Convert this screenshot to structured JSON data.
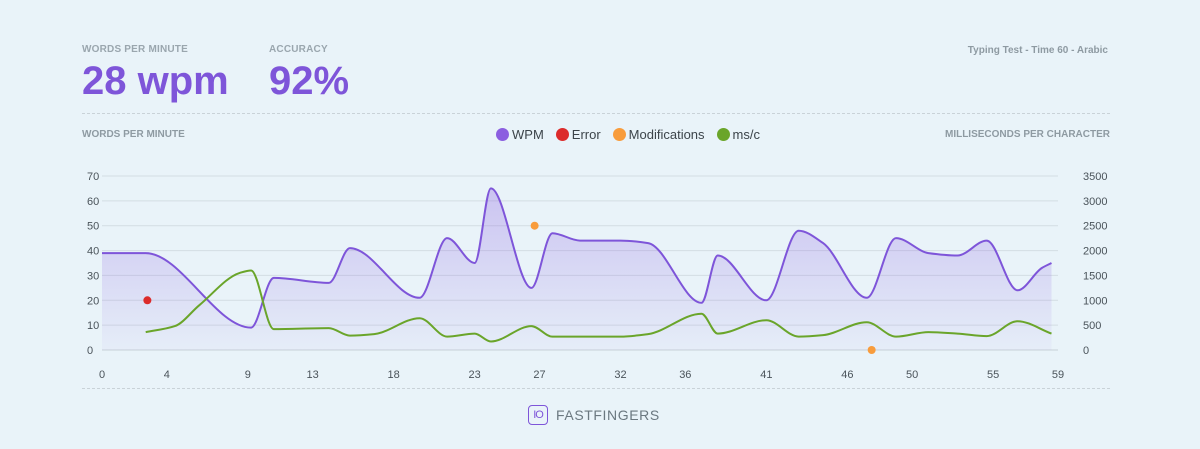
{
  "header": {
    "wpm_label": "WORDS PER MINUTE",
    "wpm_value": "28 wpm",
    "accuracy_label": "ACCURACY",
    "accuracy_value": "92%",
    "test_info": "Typing Test - Time 60 - Arabic"
  },
  "brand": {
    "icon_text": "IO",
    "name": "FASTFINGERS"
  },
  "colors": {
    "accent": "#7e55d9",
    "wpm": "#7e55d9",
    "error": "#dc2b2b",
    "modifications": "#f89c3c",
    "msc": "#6aa52a"
  },
  "chart_data": {
    "type": "line",
    "left_axis_title": "WORDS PER MINUTE",
    "right_axis_title": "MILLISECONDS PER CHARACTER",
    "x_ticks": [
      "0",
      "4",
      "9",
      "13",
      "18",
      "23",
      "27",
      "32",
      "36",
      "41",
      "46",
      "50",
      "55",
      "59"
    ],
    "x_range": [
      0,
      59
    ],
    "y_left_ticks": [
      "0",
      "10",
      "20",
      "30",
      "40",
      "50",
      "60",
      "70"
    ],
    "y_left_range": [
      0,
      70
    ],
    "y_right_ticks": [
      "0",
      "500",
      "1000",
      "1500",
      "2000",
      "2500",
      "3000",
      "3500"
    ],
    "y_right_range": [
      0,
      3500
    ],
    "grid": true,
    "legend": [
      "WPM",
      "Error",
      "Modifications",
      "ms/c"
    ],
    "legend_position": "top-center",
    "series": [
      {
        "name": "WPM",
        "axis": "left",
        "area": true,
        "x": [
          0,
          2.7,
          9.2,
          10.6,
          14,
          15.3,
          19.6,
          21.3,
          23,
          24,
          26.5,
          27.8,
          29.5,
          32,
          33.7,
          37,
          38,
          41,
          43,
          44.5,
          47.2,
          49,
          51,
          52.8,
          54.6,
          56.5,
          58,
          58.6
        ],
        "y": [
          39,
          39,
          9,
          29,
          27,
          41,
          21,
          45,
          35,
          65,
          25,
          47,
          44,
          44,
          43,
          19,
          38,
          20,
          48,
          43,
          21,
          45,
          39,
          38,
          44,
          24,
          33,
          35
        ]
      },
      {
        "name": "ms/c",
        "axis": "right",
        "x": [
          2.7,
          4.5,
          6,
          8.5,
          9.2,
          10.6,
          14,
          15.3,
          16.8,
          19.6,
          21.3,
          23,
          24,
          26.5,
          27.8,
          29.5,
          32,
          33.7,
          37,
          38,
          41,
          43,
          44.5,
          47.2,
          49,
          51,
          52.8,
          54.6,
          56.5,
          58.6
        ],
        "y": [
          360,
          480,
          900,
          1550,
          1600,
          420,
          440,
          290,
          320,
          640,
          270,
          330,
          170,
          480,
          270,
          270,
          270,
          320,
          730,
          330,
          600,
          270,
          300,
          560,
          270,
          360,
          330,
          280,
          580,
          330
        ]
      }
    ],
    "points": [
      {
        "name": "Error",
        "x": 2.8,
        "y": 20,
        "axis": "left"
      },
      {
        "name": "Modifications",
        "x": 26.7,
        "y": 50,
        "axis": "left"
      },
      {
        "name": "Modifications",
        "x": 47.5,
        "y": 0,
        "axis": "left"
      }
    ]
  }
}
